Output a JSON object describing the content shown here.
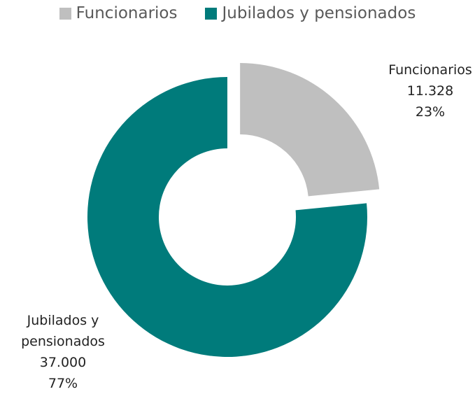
{
  "chart_data": {
    "type": "donut",
    "categories": [
      "Funcionarios",
      "Jubilados y pensionados"
    ],
    "values": [
      11328,
      37000
    ],
    "value_labels": [
      "11.328",
      "37.000"
    ],
    "percentages": [
      23,
      77
    ],
    "percentage_labels": [
      "23%",
      "77%"
    ],
    "colors": [
      "#bfbfbf",
      "#007b7b"
    ],
    "exploded": [
      true,
      false
    ],
    "legend": "top"
  }
}
